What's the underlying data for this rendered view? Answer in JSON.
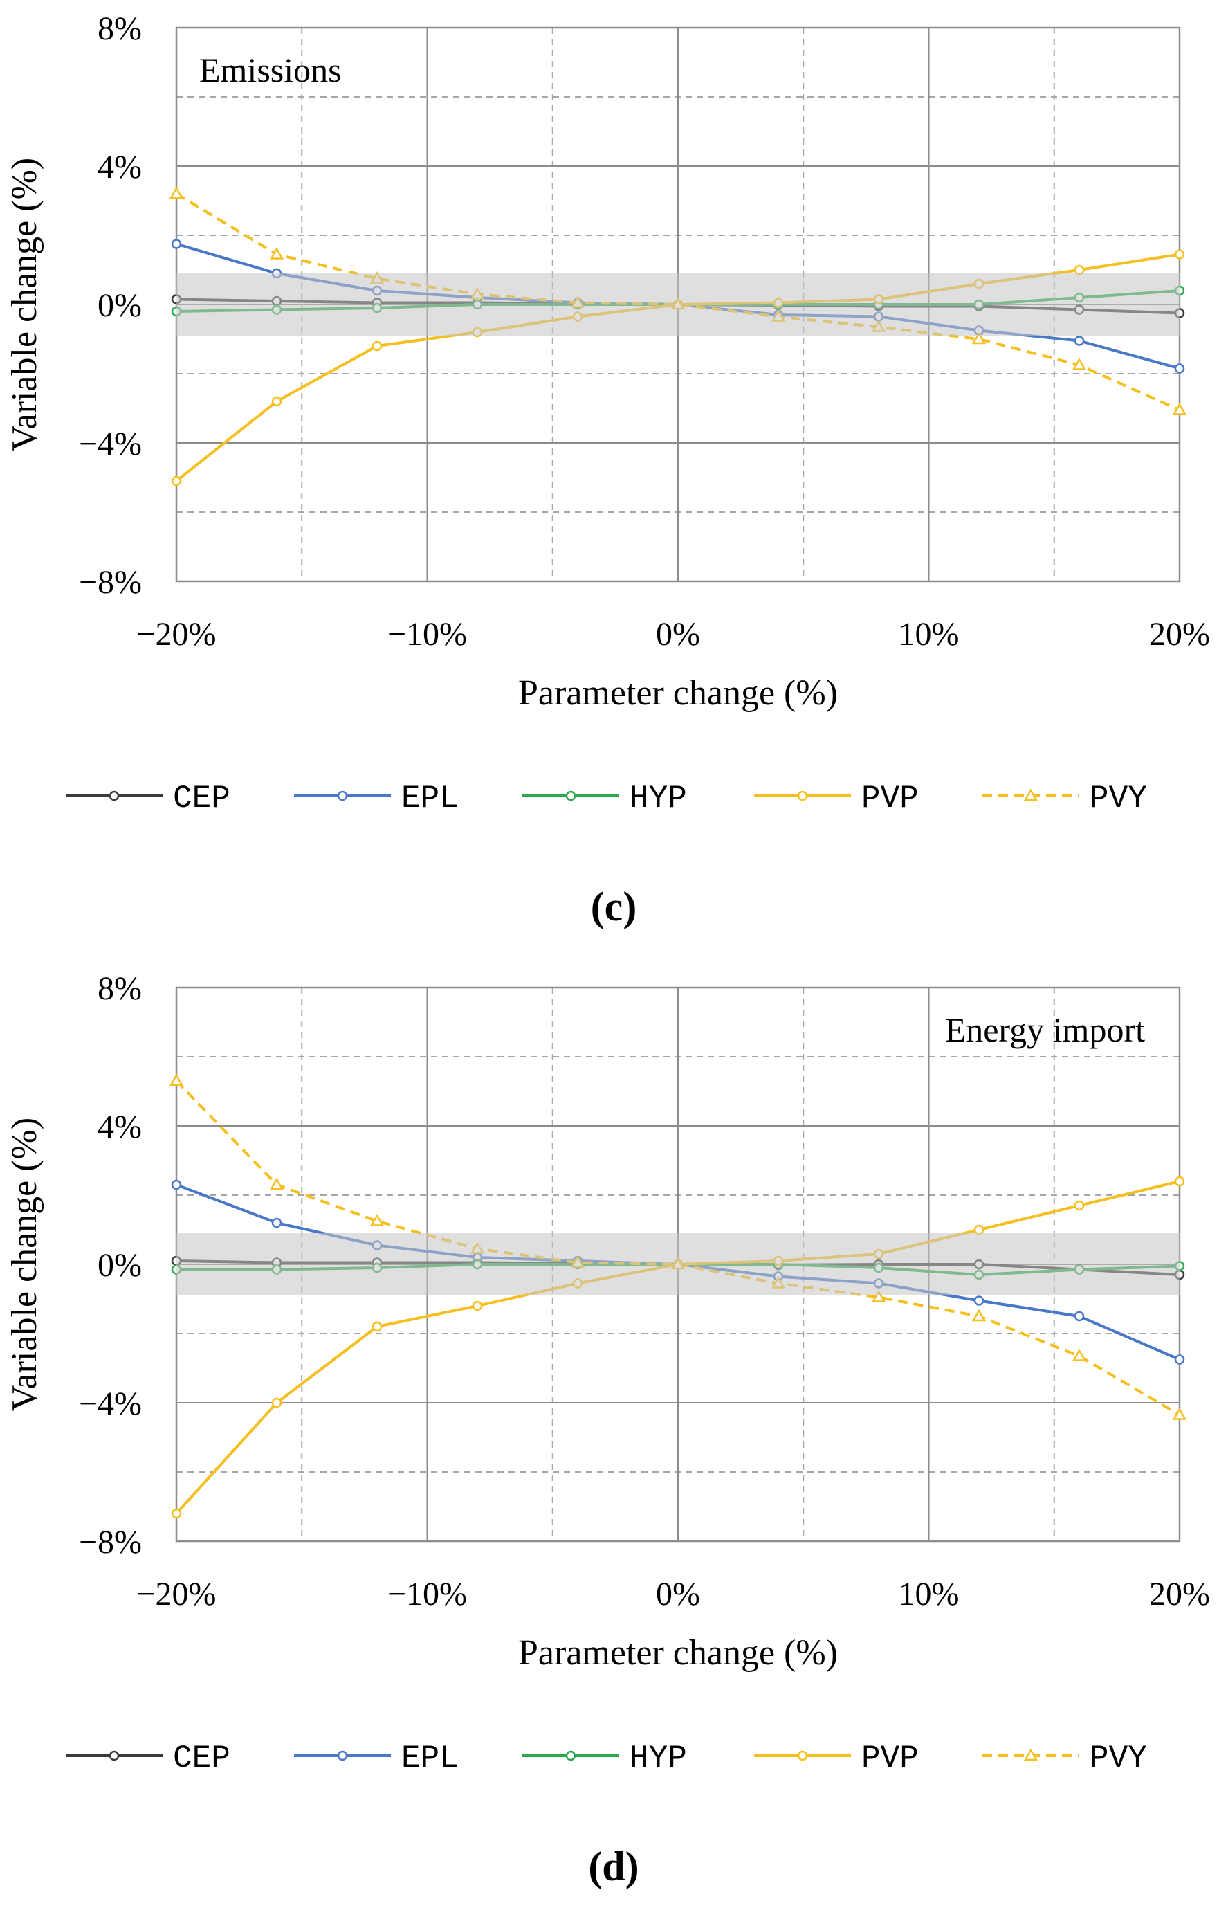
{
  "chart_data": [
    {
      "type": "line",
      "panel_label": "(c)",
      "title": "Emissions",
      "xlabel": "Parameter change (%)",
      "ylabel": "Variable change (%)",
      "xlim": [
        -20,
        20
      ],
      "ylim": [
        -8,
        8
      ],
      "x_ticks": [
        "−20%",
        "−10%",
        "0%",
        "10%",
        "20%"
      ],
      "y_ticks": [
        "8%",
        "4%",
        "0%",
        "−4%",
        "−8%"
      ],
      "band": [
        -0.9,
        0.9
      ],
      "x": [
        -20,
        -16,
        -12,
        -8,
        -4,
        0,
        4,
        8,
        12,
        16,
        20
      ],
      "series": [
        {
          "name": "CEP",
          "color": "#3a3a3a",
          "dash": false,
          "marker": "circle",
          "values": [
            0.15,
            0.1,
            0.05,
            0.05,
            0.02,
            0,
            -0.02,
            -0.05,
            -0.05,
            -0.15,
            -0.25
          ]
        },
        {
          "name": "EPL",
          "color": "#4a78c8",
          "dash": false,
          "marker": "circle",
          "values": [
            1.75,
            0.9,
            0.4,
            0.2,
            0.05,
            0,
            -0.3,
            -0.35,
            -0.75,
            -1.05,
            -1.85
          ]
        },
        {
          "name": "HYP",
          "color": "#2ea84f",
          "dash": false,
          "marker": "circle",
          "values": [
            -0.2,
            -0.15,
            -0.1,
            0,
            0,
            0,
            0,
            0,
            0,
            0.2,
            0.4
          ]
        },
        {
          "name": "PVP",
          "color": "#f5c01f",
          "dash": false,
          "marker": "circle",
          "values": [
            -5.1,
            -2.8,
            -1.2,
            -0.8,
            -0.35,
            0,
            0.05,
            0.15,
            0.6,
            1.0,
            1.45
          ]
        },
        {
          "name": "PVY",
          "color": "#f5c01f",
          "dash": true,
          "marker": "triangle",
          "values": [
            3.2,
            1.45,
            0.75,
            0.3,
            0.05,
            0,
            -0.35,
            -0.65,
            -1.0,
            -1.75,
            -3.05
          ]
        }
      ]
    },
    {
      "type": "line",
      "panel_label": "(d)",
      "title": "Energy import",
      "xlabel": "Parameter change (%)",
      "ylabel": "Variable change (%)",
      "xlim": [
        -20,
        20
      ],
      "ylim": [
        -8,
        8
      ],
      "x_ticks": [
        "−20%",
        "−10%",
        "0%",
        "10%",
        "20%"
      ],
      "y_ticks": [
        "8%",
        "4%",
        "0%",
        "−4%",
        "−8%"
      ],
      "band": [
        -0.9,
        0.9
      ],
      "x": [
        -20,
        -16,
        -12,
        -8,
        -4,
        0,
        4,
        8,
        12,
        16,
        20
      ],
      "series": [
        {
          "name": "CEP",
          "color": "#3a3a3a",
          "dash": false,
          "marker": "circle",
          "values": [
            0.1,
            0.05,
            0.05,
            0.05,
            0.02,
            0,
            -0.02,
            0,
            0,
            -0.15,
            -0.3
          ]
        },
        {
          "name": "EPL",
          "color": "#4a78c8",
          "dash": false,
          "marker": "circle",
          "values": [
            2.3,
            1.2,
            0.55,
            0.2,
            0.1,
            0,
            -0.35,
            -0.55,
            -1.05,
            -1.5,
            -2.75
          ]
        },
        {
          "name": "HYP",
          "color": "#2ea84f",
          "dash": false,
          "marker": "circle",
          "values": [
            -0.15,
            -0.15,
            -0.1,
            0,
            0,
            0,
            0,
            -0.1,
            -0.3,
            -0.15,
            -0.05
          ]
        },
        {
          "name": "PVP",
          "color": "#f5c01f",
          "dash": false,
          "marker": "circle",
          "values": [
            -7.2,
            -4.0,
            -1.8,
            -1.2,
            -0.55,
            0,
            0.1,
            0.3,
            1.0,
            1.7,
            2.4
          ]
        },
        {
          "name": "PVY",
          "color": "#f5c01f",
          "dash": true,
          "marker": "triangle",
          "values": [
            5.3,
            2.3,
            1.25,
            0.45,
            0.05,
            0,
            -0.55,
            -0.95,
            -1.5,
            -2.65,
            -4.35
          ]
        }
      ]
    }
  ]
}
